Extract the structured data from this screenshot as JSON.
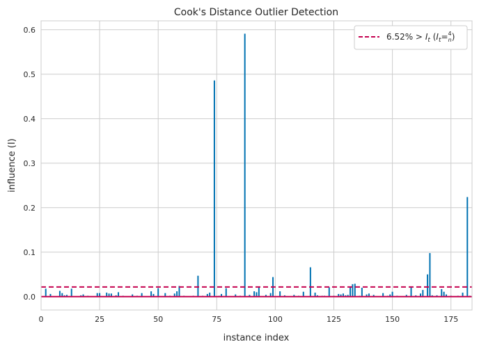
{
  "chart_data": {
    "type": "stem",
    "title": "Cook's Distance Outlier Detection",
    "xlabel": "instance index",
    "ylabel": "influence (I)",
    "xlim": [
      0,
      184
    ],
    "ylim": [
      -0.03,
      0.62
    ],
    "xticks": [
      "0",
      "25",
      "50",
      "75",
      "100",
      "125",
      "150",
      "175"
    ],
    "yticks": [
      "0.0",
      "0.1",
      "0.2",
      "0.3",
      "0.4",
      "0.5",
      "0.6"
    ],
    "grid": true,
    "legend": {
      "position": "top-right",
      "text": "6.52% > I_t (I_t = 4/n)"
    },
    "threshold": {
      "value": 0.0217,
      "color": "#c4004f",
      "style": "dashed"
    },
    "baseline": {
      "value": 0,
      "color": "#c4004f"
    },
    "stem_color": "#0072b2",
    "series": [
      {
        "x": [
          2,
          4,
          6,
          8,
          9,
          10,
          11,
          13,
          15,
          17,
          18,
          20,
          22,
          24,
          25,
          26,
          28,
          29,
          30,
          32,
          33,
          35,
          37,
          39,
          41,
          43,
          45,
          47,
          48,
          50,
          52,
          53,
          55,
          57,
          58,
          59,
          61,
          63,
          65,
          67,
          69,
          71,
          72,
          74,
          76,
          77,
          79,
          81,
          83,
          85,
          87,
          89,
          91,
          92,
          93,
          94,
          96,
          98,
          99,
          101,
          102,
          104,
          106,
          108,
          110,
          112,
          113,
          115,
          117,
          118,
          120,
          121,
          123,
          125,
          127,
          128,
          129,
          130,
          131,
          132,
          133,
          134,
          136,
          137,
          139,
          140,
          142,
          144,
          146,
          148,
          149,
          150,
          152,
          154,
          156,
          158,
          160,
          162,
          163,
          165,
          166,
          167,
          169,
          171,
          172,
          173,
          175,
          176,
          178,
          180,
          181,
          182,
          183
        ],
        "y": [
          0.018,
          0.006,
          0.001,
          0.013,
          0.008,
          0.003,
          0.004,
          0.018,
          0.001,
          0.003,
          0.005,
          0.002,
          0.001,
          0.008,
          0.008,
          0.001,
          0.009,
          0.007,
          0.007,
          0.003,
          0.01,
          0.002,
          0.001,
          0.005,
          0.002,
          0.008,
          0.001,
          0.012,
          0.006,
          0.019,
          0.001,
          0.008,
          0.002,
          0.007,
          0.012,
          0.024,
          0.002,
          0.001,
          0.002,
          0.047,
          0.002,
          0.006,
          0.009,
          0.486,
          0.002,
          0.006,
          0.019,
          0.001,
          0.005,
          0.002,
          0.591,
          0.004,
          0.012,
          0.01,
          0.023,
          0.001,
          0.004,
          0.008,
          0.044,
          0.001,
          0.012,
          0.003,
          0.001,
          0.004,
          0.002,
          0.011,
          0.001,
          0.066,
          0.009,
          0.003,
          0.002,
          0.002,
          0.021,
          0.002,
          0.006,
          0.005,
          0.007,
          0.003,
          0.004,
          0.021,
          0.028,
          0.029,
          0.002,
          0.02,
          0.005,
          0.007,
          0.004,
          0.001,
          0.008,
          0.002,
          0.005,
          0.011,
          0.002,
          0.001,
          0.004,
          0.021,
          0.003,
          0.007,
          0.015,
          0.05,
          0.098,
          0.003,
          0.003,
          0.017,
          0.011,
          0.005,
          0.002,
          0.001,
          0.002,
          0.009,
          0.001,
          0.224,
          0.002
        ]
      }
    ]
  }
}
